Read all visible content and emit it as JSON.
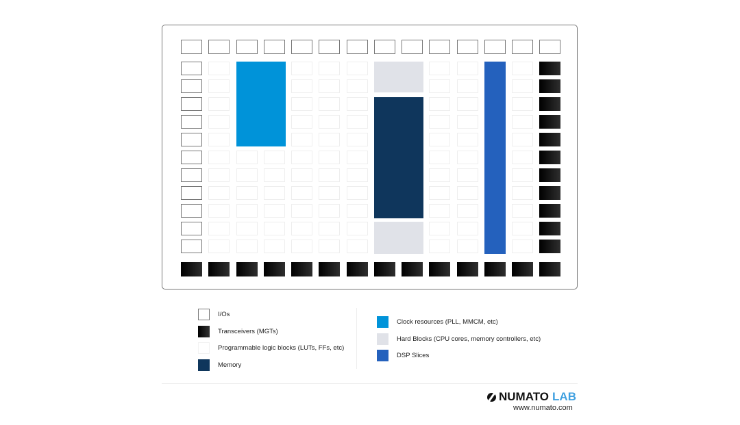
{
  "colors": {
    "io_border": "#777777",
    "mgt": "#1a1a1a",
    "logic": "#ffffff",
    "memory": "#0f365c",
    "clock": "#0093d9",
    "hard": "#e0e2e8",
    "dsp": "#2461bd"
  },
  "legend_left": [
    {
      "label": "I/Os",
      "type": "io"
    },
    {
      "label": "Transceivers (MGTs)",
      "type": "mgt"
    },
    {
      "label": "Programmable logic blocks (LUTs, FFs, etc)",
      "type": "logic"
    },
    {
      "label": "Memory",
      "type": "memory"
    }
  ],
  "legend_right": [
    {
      "label": "Clock resources (PLL, MMCM, etc)",
      "type": "clock"
    },
    {
      "label": "Hard Blocks (CPU cores, memory controllers, etc)",
      "type": "hard"
    },
    {
      "label": "DSP Slices",
      "type": "dsp"
    }
  ],
  "logo": {
    "name": "NUMATO",
    "suffix": "LAB",
    "url": "www.numato.com"
  }
}
